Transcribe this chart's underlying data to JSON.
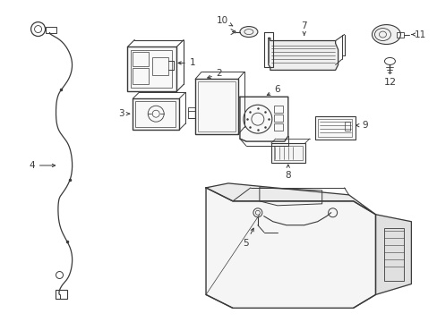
{
  "background_color": "#ffffff",
  "line_color": "#3a3a3a",
  "figsize": [
    4.89,
    3.6
  ],
  "dpi": 100,
  "xlim": [
    0,
    489
  ],
  "ylim": [
    0,
    360
  ]
}
